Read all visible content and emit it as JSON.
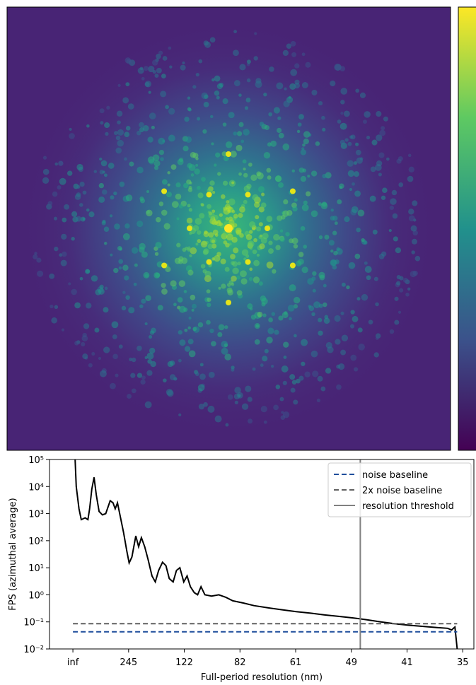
{
  "chart_data": {
    "type": "line",
    "xlabel": "Full-period resolution (nm)",
    "ylabel": "FPS (azimuthal average)",
    "log_y": true,
    "xlim": [
      -0.42,
      7.2
    ],
    "ylim": [
      0.01,
      100000
    ],
    "xticks": [
      {
        "value": 0,
        "label": "inf"
      },
      {
        "value": 1,
        "label": "245"
      },
      {
        "value": 2,
        "label": "122"
      },
      {
        "value": 3,
        "label": "82"
      },
      {
        "value": 4,
        "label": "61"
      },
      {
        "value": 5,
        "label": "49"
      },
      {
        "value": 6,
        "label": "41"
      },
      {
        "value": 7,
        "label": "35"
      }
    ],
    "yticks": [
      {
        "value": 0.01,
        "label": "10⁻²"
      },
      {
        "value": 0.1,
        "label": "10⁻¹"
      },
      {
        "value": 1,
        "label": "10⁰"
      },
      {
        "value": 10,
        "label": "10¹"
      },
      {
        "value": 100,
        "label": "10²"
      },
      {
        "value": 1000,
        "label": "10³"
      },
      {
        "value": 10000,
        "label": "10⁴"
      },
      {
        "value": 100000,
        "label": "10⁵"
      }
    ],
    "legend": "upper right",
    "series": [
      {
        "name": "FPS",
        "legend": false,
        "color": "#000000",
        "style": "solid",
        "x": [
          0.04,
          0.06,
          0.11,
          0.15,
          0.22,
          0.27,
          0.3,
          0.34,
          0.38,
          0.42,
          0.47,
          0.53,
          0.59,
          0.67,
          0.72,
          0.76,
          0.8,
          0.85,
          0.91,
          0.97,
          1.01,
          1.06,
          1.13,
          1.18,
          1.23,
          1.29,
          1.35,
          1.42,
          1.48,
          1.54,
          1.61,
          1.67,
          1.73,
          1.8,
          1.86,
          1.92,
          1.99,
          2.05,
          2.11,
          2.18,
          2.24,
          2.3,
          2.37,
          2.49,
          2.62,
          2.75,
          2.87,
          3.06,
          3.25,
          3.51,
          3.76,
          4.01,
          4.27,
          4.52,
          4.77,
          5.03,
          5.28,
          5.53,
          5.78,
          6.04,
          6.29,
          6.54,
          6.73,
          6.8,
          6.86,
          6.9
        ],
        "values": [
          100000,
          10000,
          1500,
          600,
          700,
          600,
          1500,
          8000,
          22000,
          5000,
          1200,
          900,
          1000,
          3000,
          2500,
          1500,
          2500,
          800,
          200,
          40,
          15,
          25,
          150,
          60,
          130,
          60,
          20,
          5,
          3,
          8,
          16,
          12,
          4,
          3,
          8,
          10,
          3,
          5,
          2,
          1.2,
          1,
          2,
          1,
          0.9,
          1,
          0.8,
          0.6,
          0.5,
          0.4,
          0.33,
          0.28,
          0.24,
          0.21,
          0.18,
          0.16,
          0.14,
          0.12,
          0.1,
          0.085,
          0.075,
          0.068,
          0.062,
          0.058,
          0.05,
          0.065,
          0.01
        ]
      },
      {
        "name": "noise baseline",
        "color": "#1f4e9c",
        "style": "dashed",
        "x": [
          0,
          6.9
        ],
        "values": [
          0.043,
          0.043
        ]
      },
      {
        "name": "2x noise baseline",
        "color": "#606060",
        "style": "dashed",
        "x": [
          0,
          6.9
        ],
        "values": [
          0.086,
          0.086
        ]
      },
      {
        "name": "resolution threshold",
        "color": "#808080",
        "style": "solid",
        "x": [
          5.16,
          5.16
        ],
        "values": [
          0.01,
          100000
        ]
      }
    ]
  }
}
